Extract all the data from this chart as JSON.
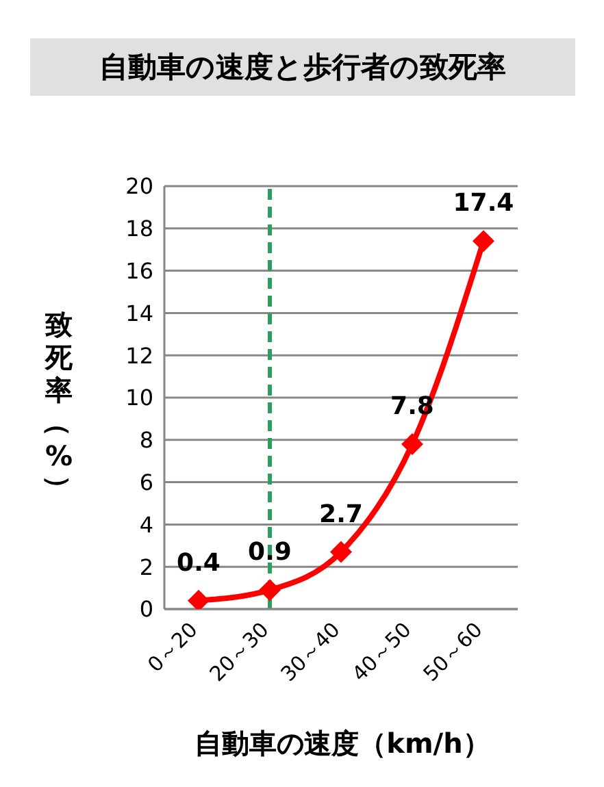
{
  "chart_data": {
    "type": "line",
    "title": "自動車の速度と歩行者の致死率",
    "xlabel": "自動車の速度（km/h）",
    "ylabel": "致死率（%）",
    "categories": [
      "0～20",
      "20～30",
      "30～40",
      "40～50",
      "50～60"
    ],
    "series": [
      {
        "color": "#ff0000",
        "values": [
          0.4,
          0.9,
          2.7,
          7.8,
          17.4
        ]
      }
    ],
    "ylim": [
      0,
      20
    ],
    "yticks": [
      0,
      2,
      4,
      6,
      8,
      10,
      12,
      14,
      16,
      18,
      20
    ],
    "grid": "y",
    "legend": false,
    "marker": "diamond",
    "line_style": "solid",
    "data_labels": true,
    "ref_lines": [
      {
        "axis": "x",
        "value": "20～30",
        "color": "#2e9e5e",
        "line_style": "dashed"
      }
    ]
  }
}
